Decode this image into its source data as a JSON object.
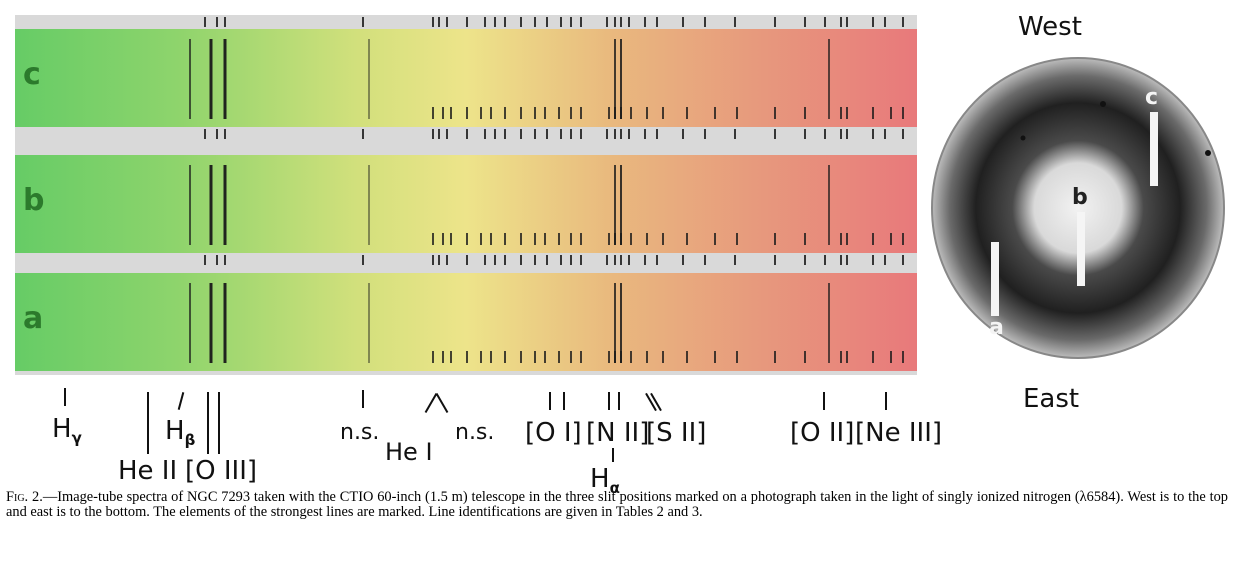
{
  "figure": {
    "strips": [
      {
        "label": "c"
      },
      {
        "label": "b"
      },
      {
        "label": "a"
      }
    ],
    "line_labels": {
      "h_gamma": "H",
      "h_gamma_sub": "γ",
      "h_beta": "H",
      "h_beta_sub": "β",
      "he_ii": "He II",
      "o_iii": "[O III]",
      "ns_1": "n.s.",
      "he_i": "He I",
      "ns_2": "n.s.",
      "o_i": "[O I]",
      "n_ii": "[N II]",
      "h_alpha": "H",
      "h_alpha_sub": "α",
      "s_ii": "[S II]",
      "o_ii": "[O II]",
      "ne_iii": "[Ne III]"
    },
    "photo": {
      "west": "West",
      "east": "East",
      "slit_labels": {
        "a": "a",
        "b": "b",
        "c": "c"
      }
    }
  },
  "caption": {
    "fig_label": "Fig. 2.",
    "text": "—Image-tube spectra of NGC 7293 taken with the CTIO 60-inch (1.5 m) telescope in the three slit positions marked on a photograph taken in the light of singly ionized nitrogen (λ6584). West is to the top and east is to the bottom. The elements of the strongest lines are marked. Line identifications are given in Tables 2 and 3."
  }
}
